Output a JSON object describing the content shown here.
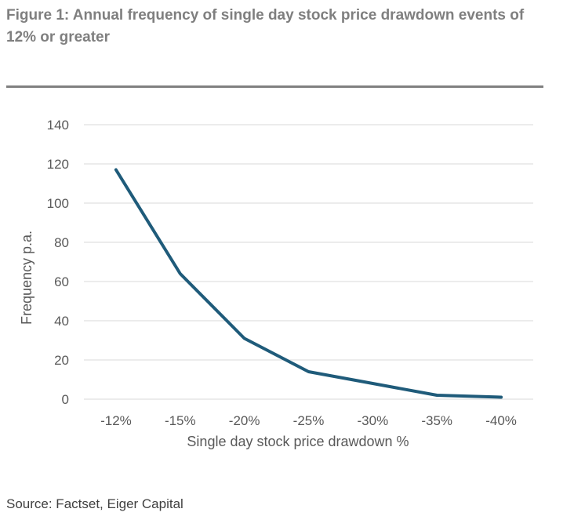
{
  "figure": {
    "title": "Figure 1: Annual frequency of single day stock price drawdown events of 12% or greater",
    "source": "Source: Factset, Eiger Capital"
  },
  "colors": {
    "line": "#1f5b7a",
    "grid": "#d9d9d9",
    "text": "#595959",
    "title": "#7f7f7f"
  },
  "chart_data": {
    "type": "line",
    "categories": [
      "-12%",
      "-15%",
      "-20%",
      "-25%",
      "-30%",
      "-35%",
      "-40%"
    ],
    "series": [
      {
        "values": [
          117,
          64,
          31,
          14,
          8,
          2,
          1
        ]
      }
    ],
    "xlabel": "Single day stock price drawdown %",
    "ylabel": "Frequency p.a.",
    "ylim": [
      0,
      140
    ],
    "yticks": [
      0,
      20,
      40,
      60,
      80,
      100,
      120,
      140
    ],
    "grid": true,
    "legend": "none"
  }
}
